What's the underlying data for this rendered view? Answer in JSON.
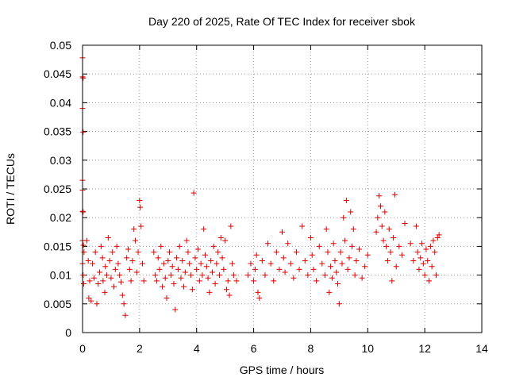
{
  "chart_data": {
    "type": "scatter",
    "title": "Day 220 of 2025, Rate Of TEC Index for receiver sbok",
    "xlabel": "GPS time / hours",
    "ylabel": "ROTI / TECUs",
    "xlim": [
      0,
      14
    ],
    "ylim": [
      0,
      0.05
    ],
    "xticks": [
      "0",
      "2",
      "4",
      "6",
      "8",
      "10",
      "12",
      "14"
    ],
    "yticks": [
      "0",
      "0.005",
      "0.01",
      "0.015",
      "0.02",
      "0.025",
      "0.03",
      "0.035",
      "0.04",
      "0.045",
      "0.05"
    ],
    "grid": true,
    "marker": "+",
    "color": "#e00000",
    "series": [
      {
        "points": [
          [
            0.0,
            0.0478
          ],
          [
            0.0,
            0.0445
          ],
          [
            0.02,
            0.0443
          ],
          [
            0.0,
            0.039
          ],
          [
            0.02,
            0.0349
          ],
          [
            0.0,
            0.0265
          ],
          [
            0.0,
            0.0248
          ],
          [
            0.0,
            0.0211
          ],
          [
            0.02,
            0.021
          ],
          [
            0.0,
            0.016
          ],
          [
            0.03,
            0.0152
          ],
          [
            0.05,
            0.014
          ],
          [
            0.0,
            0.012
          ],
          [
            0.02,
            0.01
          ],
          [
            0.04,
            0.0085
          ],
          [
            0.15,
            0.016
          ],
          [
            0.2,
            0.0125
          ],
          [
            0.25,
            0.009
          ],
          [
            0.22,
            0.006
          ],
          [
            0.3,
            0.0055
          ],
          [
            0.35,
            0.012
          ],
          [
            0.4,
            0.0095
          ],
          [
            0.45,
            0.014
          ],
          [
            0.5,
            0.005
          ],
          [
            0.55,
            0.0085
          ],
          [
            0.6,
            0.0105
          ],
          [
            0.65,
            0.015
          ],
          [
            0.7,
            0.013
          ],
          [
            0.72,
            0.009
          ],
          [
            0.78,
            0.007
          ],
          [
            0.8,
            0.0115
          ],
          [
            0.85,
            0.01
          ],
          [
            0.9,
            0.0165
          ],
          [
            0.95,
            0.0125
          ],
          [
            1.0,
            0.0095
          ],
          [
            1.05,
            0.014
          ],
          [
            1.1,
            0.008
          ],
          [
            1.15,
            0.011
          ],
          [
            1.2,
            0.015
          ],
          [
            1.25,
            0.012
          ],
          [
            1.3,
            0.01
          ],
          [
            1.35,
            0.0088
          ],
          [
            1.4,
            0.0065
          ],
          [
            1.45,
            0.005
          ],
          [
            1.5,
            0.003
          ],
          [
            1.55,
            0.013
          ],
          [
            1.6,
            0.0145
          ],
          [
            1.65,
            0.011
          ],
          [
            1.7,
            0.009
          ],
          [
            1.75,
            0.0125
          ],
          [
            1.8,
            0.018
          ],
          [
            1.85,
            0.016
          ],
          [
            1.9,
            0.0105
          ],
          [
            1.95,
            0.014
          ],
          [
            2.0,
            0.023
          ],
          [
            2.02,
            0.0218
          ],
          [
            2.05,
            0.0185
          ],
          [
            2.1,
            0.012
          ],
          [
            2.15,
            0.009
          ],
          [
            2.5,
            0.014
          ],
          [
            2.55,
            0.01
          ],
          [
            2.6,
            0.009
          ],
          [
            2.65,
            0.013
          ],
          [
            2.7,
            0.011
          ],
          [
            2.75,
            0.015
          ],
          [
            2.8,
            0.008
          ],
          [
            2.85,
            0.012
          ],
          [
            2.9,
            0.0095
          ],
          [
            2.95,
            0.006
          ],
          [
            3.0,
            0.0125
          ],
          [
            3.05,
            0.014
          ],
          [
            3.1,
            0.01
          ],
          [
            3.15,
            0.0115
          ],
          [
            3.2,
            0.0085
          ],
          [
            3.25,
            0.004
          ],
          [
            3.3,
            0.013
          ],
          [
            3.35,
            0.011
          ],
          [
            3.4,
            0.015
          ],
          [
            3.45,
            0.0095
          ],
          [
            3.5,
            0.0125
          ],
          [
            3.55,
            0.008
          ],
          [
            3.6,
            0.0105
          ],
          [
            3.65,
            0.016
          ],
          [
            3.7,
            0.014
          ],
          [
            3.75,
            0.012
          ],
          [
            3.8,
            0.01
          ],
          [
            3.85,
            0.0075
          ],
          [
            3.9,
            0.0243
          ],
          [
            3.95,
            0.013
          ],
          [
            4.0,
            0.011
          ],
          [
            4.05,
            0.0145
          ],
          [
            4.1,
            0.009
          ],
          [
            4.15,
            0.012
          ],
          [
            4.2,
            0.01
          ],
          [
            4.25,
            0.018
          ],
          [
            4.3,
            0.0135
          ],
          [
            4.35,
            0.0115
          ],
          [
            4.4,
            0.0095
          ],
          [
            4.45,
            0.007
          ],
          [
            4.5,
            0.0125
          ],
          [
            4.55,
            0.0105
          ],
          [
            4.6,
            0.015
          ],
          [
            4.65,
            0.0085
          ],
          [
            4.7,
            0.012
          ],
          [
            4.75,
            0.014
          ],
          [
            4.8,
            0.01
          ],
          [
            4.85,
            0.0165
          ],
          [
            4.9,
            0.013
          ],
          [
            4.95,
            0.011
          ],
          [
            5.0,
            0.016
          ],
          [
            5.05,
            0.0075
          ],
          [
            5.1,
            0.009
          ],
          [
            5.15,
            0.0065
          ],
          [
            5.2,
            0.0185
          ],
          [
            5.25,
            0.012
          ],
          [
            5.3,
            0.01
          ],
          [
            5.4,
            0.009
          ],
          [
            5.8,
            0.01
          ],
          [
            5.9,
            0.012
          ],
          [
            6.0,
            0.009
          ],
          [
            6.05,
            0.011
          ],
          [
            6.1,
            0.0135
          ],
          [
            6.15,
            0.007
          ],
          [
            6.2,
            0.006
          ],
          [
            6.3,
            0.0125
          ],
          [
            6.4,
            0.01
          ],
          [
            6.5,
            0.0155
          ],
          [
            6.6,
            0.012
          ],
          [
            6.7,
            0.009
          ],
          [
            6.8,
            0.014
          ],
          [
            6.9,
            0.011
          ],
          [
            7.0,
            0.0175
          ],
          [
            7.05,
            0.013
          ],
          [
            7.1,
            0.0105
          ],
          [
            7.2,
            0.0155
          ],
          [
            7.3,
            0.012
          ],
          [
            7.4,
            0.0095
          ],
          [
            7.5,
            0.014
          ],
          [
            7.6,
            0.011
          ],
          [
            7.7,
            0.0185
          ],
          [
            7.8,
            0.0125
          ],
          [
            7.9,
            0.01
          ],
          [
            8.0,
            0.0165
          ],
          [
            8.05,
            0.0135
          ],
          [
            8.1,
            0.011
          ],
          [
            8.2,
            0.009
          ],
          [
            8.3,
            0.015
          ],
          [
            8.4,
            0.012
          ],
          [
            8.5,
            0.01
          ],
          [
            8.55,
            0.018
          ],
          [
            8.6,
            0.014
          ],
          [
            8.65,
            0.007
          ],
          [
            8.7,
            0.0115
          ],
          [
            8.75,
            0.0095
          ],
          [
            8.8,
            0.0155
          ],
          [
            8.85,
            0.0125
          ],
          [
            8.9,
            0.0105
          ],
          [
            8.95,
            0.0085
          ],
          [
            9.0,
            0.005
          ],
          [
            9.05,
            0.014
          ],
          [
            9.1,
            0.012
          ],
          [
            9.15,
            0.02
          ],
          [
            9.2,
            0.016
          ],
          [
            9.25,
            0.023
          ],
          [
            9.3,
            0.011
          ],
          [
            9.35,
            0.013
          ],
          [
            9.4,
            0.021
          ],
          [
            9.45,
            0.015
          ],
          [
            9.5,
            0.018
          ],
          [
            9.55,
            0.01
          ],
          [
            9.6,
            0.0125
          ],
          [
            9.7,
            0.0145
          ],
          [
            9.8,
            0.0095
          ],
          [
            9.9,
            0.0115
          ],
          [
            10.0,
            0.0135
          ],
          [
            10.3,
            0.0175
          ],
          [
            10.35,
            0.02
          ],
          [
            10.4,
            0.0238
          ],
          [
            10.45,
            0.022
          ],
          [
            10.5,
            0.0185
          ],
          [
            10.55,
            0.016
          ],
          [
            10.6,
            0.021
          ],
          [
            10.65,
            0.015
          ],
          [
            10.7,
            0.0125
          ],
          [
            10.75,
            0.018
          ],
          [
            10.8,
            0.014
          ],
          [
            10.85,
            0.009
          ],
          [
            10.9,
            0.0165
          ],
          [
            10.95,
            0.024
          ],
          [
            11.0,
            0.0115
          ],
          [
            11.1,
            0.015
          ],
          [
            11.2,
            0.0135
          ],
          [
            11.3,
            0.019
          ],
          [
            11.5,
            0.0155
          ],
          [
            11.6,
            0.0125
          ],
          [
            11.7,
            0.0185
          ],
          [
            11.75,
            0.014
          ],
          [
            11.8,
            0.011
          ],
          [
            11.85,
            0.013
          ],
          [
            11.9,
            0.0155
          ],
          [
            11.95,
            0.012
          ],
          [
            12.0,
            0.01
          ],
          [
            12.05,
            0.0145
          ],
          [
            12.1,
            0.0125
          ],
          [
            12.15,
            0.009
          ],
          [
            12.2,
            0.015
          ],
          [
            12.25,
            0.0115
          ],
          [
            12.3,
            0.016
          ],
          [
            12.35,
            0.014
          ],
          [
            12.4,
            0.01
          ],
          [
            12.45,
            0.0165
          ],
          [
            12.5,
            0.017
          ]
        ]
      }
    ]
  }
}
